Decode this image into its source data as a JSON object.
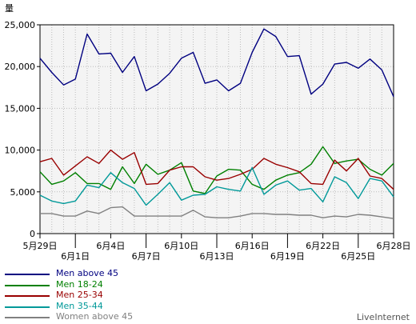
{
  "chart_data": {
    "type": "line",
    "ylabel": "量",
    "ylim": [
      0,
      25000
    ],
    "yticks": [
      "0",
      "5,000",
      "10,000",
      "15,000",
      "20,000",
      "25,000"
    ],
    "x": [
      "5月29日",
      "5月30日",
      "5月31日",
      "6月1日",
      "6月2日",
      "6月3日",
      "6月4日",
      "6月5日",
      "6月6日",
      "6月7日",
      "6月8日",
      "6月9日",
      "6月10日",
      "6月11日",
      "6月12日",
      "6月13日",
      "6月14日",
      "6月15日",
      "6月16日",
      "6月17日",
      "6月18日",
      "6月19日",
      "6月20日",
      "6月21日",
      "6月22日",
      "6月23日",
      "6月24日",
      "6月25日",
      "6月26日",
      "6月27日",
      "6月28日"
    ],
    "xticks_upper": [
      "5月29日",
      "6月4日",
      "6月10日",
      "6月16日",
      "6月22日",
      "6月28日"
    ],
    "xticks_lower": [
      "6月1日",
      "6月7日",
      "6月13日",
      "6月19日",
      "6月25日"
    ],
    "grid": true,
    "legend_position": "bottom-left",
    "series": [
      {
        "name": "Men above 45",
        "color": "#000080",
        "values": [
          21000,
          19300,
          17800,
          18500,
          23900,
          21500,
          21600,
          19300,
          21200,
          17100,
          17900,
          19200,
          21000,
          21700,
          18000,
          18400,
          17100,
          18000,
          21700,
          24500,
          23600,
          21200,
          21300,
          16700,
          17900,
          20300,
          20500,
          19800,
          20900,
          19600,
          16400
        ]
      },
      {
        "name": "Men 18-24",
        "color": "#008000",
        "values": [
          7400,
          5900,
          6300,
          7300,
          6000,
          6000,
          5300,
          8000,
          6000,
          8300,
          7100,
          7600,
          8500,
          5100,
          4800,
          6900,
          7700,
          7600,
          5900,
          5300,
          6400,
          7000,
          7300,
          8300,
          10400,
          8400,
          8700,
          8900,
          7700,
          7000,
          8400
        ]
      },
      {
        "name": "Men 25-34",
        "color": "#990000",
        "values": [
          8600,
          9000,
          7000,
          8100,
          9200,
          8400,
          10000,
          8900,
          9700,
          5900,
          6000,
          7600,
          8000,
          8000,
          6800,
          6400,
          6600,
          7100,
          7700,
          9000,
          8300,
          7900,
          7400,
          6000,
          5900,
          8800,
          7500,
          9000,
          6900,
          6600,
          5300
        ]
      },
      {
        "name": "Men 35-44",
        "color": "#009999",
        "values": [
          4600,
          3900,
          3600,
          3900,
          5800,
          5500,
          7300,
          6100,
          5400,
          3400,
          4700,
          6100,
          4000,
          4600,
          4700,
          5600,
          5300,
          5100,
          7900,
          4700,
          5800,
          6300,
          5200,
          5400,
          3800,
          6800,
          6100,
          4200,
          6600,
          6300,
          4400
        ]
      },
      {
        "name": "Women above 45",
        "color": "#808080",
        "values": [
          2400,
          2400,
          2100,
          2100,
          2700,
          2400,
          3100,
          3200,
          2100,
          2100,
          2100,
          2100,
          2100,
          2800,
          2000,
          1900,
          1900,
          2100,
          2400,
          2400,
          2300,
          2300,
          2200,
          2200,
          1900,
          2100,
          2000,
          2300,
          2200,
          2000,
          1800
        ]
      }
    ]
  },
  "footer": {
    "brand": "LiveInternet"
  }
}
